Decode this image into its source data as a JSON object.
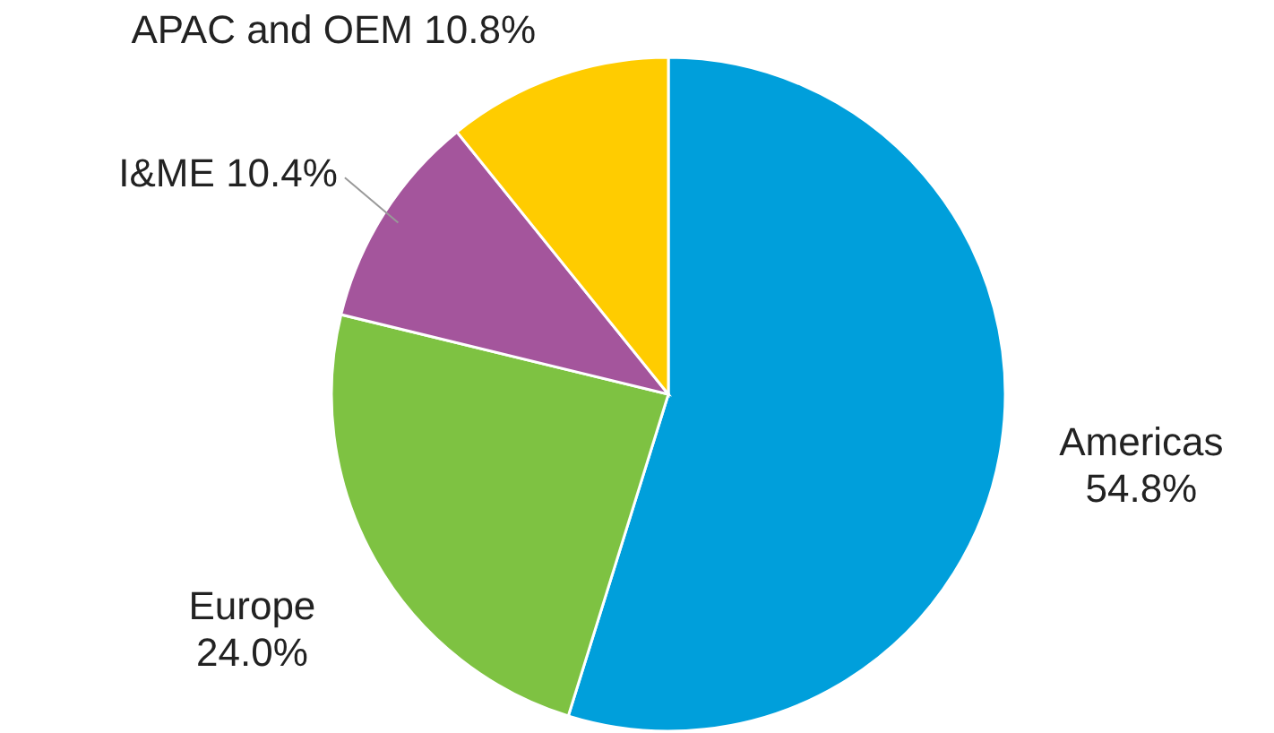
{
  "chart_data": {
    "type": "pie",
    "categories": [
      "Americas",
      "Europe",
      "I&ME",
      "APAC and OEM"
    ],
    "values": [
      54.8,
      24.0,
      10.4,
      10.8
    ],
    "colors": [
      "#009fdb",
      "#7ec242",
      "#a4559c",
      "#ffcc00"
    ],
    "value_labels": [
      "54.8%",
      "24.0%",
      "10.4%",
      "10.8%"
    ]
  }
}
